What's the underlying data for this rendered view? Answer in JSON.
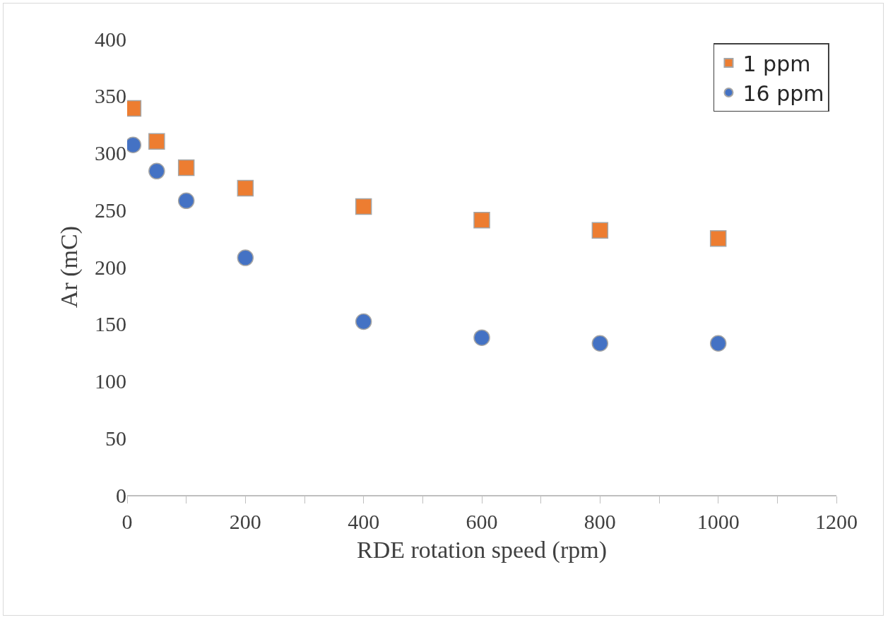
{
  "chart_data": {
    "type": "scatter",
    "xlabel": "RDE rotation speed (rpm)",
    "ylabel": "Ar (mC)",
    "x": [
      10,
      50,
      100,
      200,
      400,
      600,
      800,
      1000
    ],
    "series": [
      {
        "name": "1 ppm",
        "color": "#ed7d31",
        "marker": "square",
        "values": [
          339,
          310,
          287,
          269,
          253,
          241,
          232,
          225
        ]
      },
      {
        "name": "16 ppm",
        "color": "#4472c4",
        "marker": "circle",
        "values": [
          307,
          284,
          258,
          208,
          152,
          138,
          133,
          133
        ]
      }
    ],
    "xlim": [
      0,
      1200
    ],
    "xticks": [
      0,
      {
        "value": 100,
        "label": null
      },
      200,
      {
        "value": 300,
        "label": null
      },
      400,
      {
        "value": 500,
        "label": null
      },
      600,
      {
        "value": 700,
        "label": null
      },
      800,
      {
        "value": 900,
        "label": null
      },
      1000,
      {
        "value": 1100,
        "label": null
      },
      1200
    ],
    "ylim": [
      0,
      400
    ],
    "yticks": [
      0,
      50,
      100,
      150,
      200,
      250,
      300,
      350,
      400
    ],
    "grid": false,
    "legend": "top right"
  }
}
